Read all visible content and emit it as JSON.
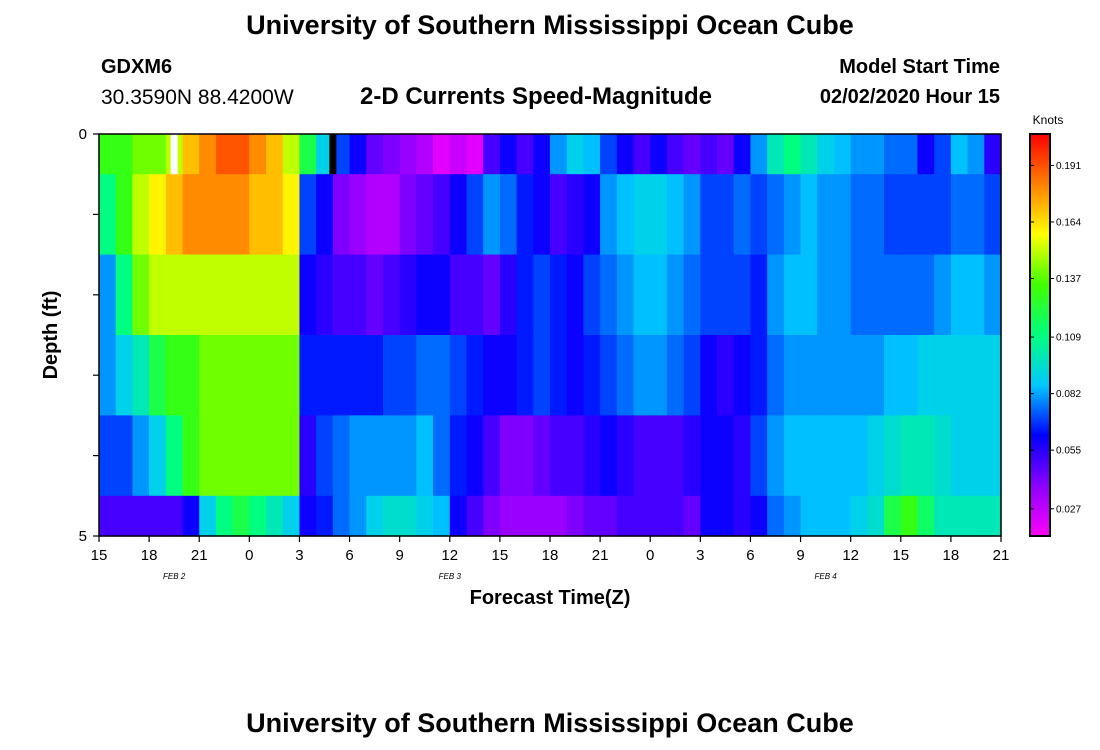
{
  "header": {
    "title": "University of Southern Mississippi Ocean Cube",
    "station_id": "GDXM6",
    "station_coords": "30.3590N 88.4200W",
    "chart_title": "2-D Currents Speed-Magnitude",
    "model_start_label": "Model Start Time",
    "model_start_value": "02/02/2020 Hour 15"
  },
  "footer": {
    "title": "University of Southern Mississippi Ocean Cube"
  },
  "chart_data": {
    "type": "heatmap",
    "title": "2-D Currents Speed-Magnitude",
    "xlabel": "Forecast Time(Z)",
    "ylabel": "Depth (ft)",
    "x_tick_labels": [
      "15",
      "18",
      "21",
      "0",
      "3",
      "6",
      "9",
      "12",
      "15",
      "18",
      "21",
      "0",
      "3",
      "6",
      "9",
      "12",
      "15",
      "18",
      "21"
    ],
    "x_tick_hours": [
      0,
      3,
      6,
      9,
      12,
      15,
      18,
      21,
      24,
      27,
      30,
      33,
      36,
      39,
      42,
      45,
      48,
      51,
      54
    ],
    "date_labels": [
      {
        "text": "FEB 2",
        "hour": 4.5
      },
      {
        "text": "FEB 3",
        "hour": 21
      },
      {
        "text": "FEB 4",
        "hour": 43.5
      }
    ],
    "xlim_hours": [
      0,
      54
    ],
    "y_tick_labels": [
      "0",
      "5"
    ],
    "ylim_ft": [
      0,
      5
    ],
    "depth_rows_ft": [
      [
        0,
        0.5
      ],
      [
        0.5,
        1.5
      ],
      [
        1.5,
        2.5
      ],
      [
        2.5,
        3.5
      ],
      [
        3.5,
        4.5
      ],
      [
        4.5,
        5.0
      ]
    ],
    "colorbar": {
      "label": "Knots",
      "min": 0.014,
      "max": 0.206,
      "tick_labels": [
        "0.191",
        "0.164",
        "0.137",
        "0.109",
        "0.082",
        "0.055",
        "0.027"
      ],
      "tick_values": [
        0.191,
        0.164,
        0.137,
        0.109,
        0.082,
        0.055,
        0.027
      ],
      "colors": [
        "#ff00ff",
        "#8c00ff",
        "#0000ff",
        "#00c8ff",
        "#00ff80",
        "#40ff00",
        "#ffff00",
        "#ff8000",
        "#ff0000"
      ]
    },
    "markers": [
      {
        "hour": 4.5,
        "color": "#ffffff"
      },
      {
        "hour": 14.0,
        "color": "#000000"
      }
    ],
    "values": [
      [
        0.13,
        0.13,
        0.14,
        0.14,
        0.15,
        0.17,
        0.18,
        0.19,
        0.19,
        0.18,
        0.17,
        0.15,
        0.12,
        0.09,
        0.07,
        0.06,
        0.045,
        0.04,
        0.035,
        0.03,
        0.02,
        0.025,
        0.02,
        0.05,
        0.06,
        0.05,
        0.06,
        0.08,
        0.09,
        0.085,
        0.07,
        0.06,
        0.05,
        0.06,
        0.05,
        0.045,
        0.05,
        0.045,
        0.06,
        0.08,
        0.1,
        0.11,
        0.1,
        0.09,
        0.085,
        0.08,
        0.08,
        0.075,
        0.075,
        0.06,
        0.07,
        0.085,
        0.08,
        0.055
      ],
      [
        0.11,
        0.13,
        0.15,
        0.16,
        0.17,
        0.18,
        0.18,
        0.18,
        0.18,
        0.17,
        0.17,
        0.16,
        0.07,
        0.06,
        0.04,
        0.035,
        0.03,
        0.03,
        0.04,
        0.045,
        0.05,
        0.06,
        0.07,
        0.08,
        0.075,
        0.065,
        0.06,
        0.05,
        0.055,
        0.06,
        0.08,
        0.085,
        0.09,
        0.09,
        0.085,
        0.08,
        0.07,
        0.07,
        0.075,
        0.07,
        0.075,
        0.08,
        0.085,
        0.08,
        0.08,
        0.075,
        0.075,
        0.07,
        0.07,
        0.07,
        0.07,
        0.075,
        0.075,
        0.07
      ],
      [
        0.08,
        0.11,
        0.14,
        0.15,
        0.15,
        0.15,
        0.15,
        0.15,
        0.15,
        0.15,
        0.15,
        0.15,
        0.06,
        0.055,
        0.05,
        0.05,
        0.045,
        0.05,
        0.055,
        0.06,
        0.06,
        0.05,
        0.05,
        0.045,
        0.055,
        0.065,
        0.07,
        0.065,
        0.06,
        0.07,
        0.075,
        0.08,
        0.085,
        0.085,
        0.08,
        0.075,
        0.07,
        0.07,
        0.07,
        0.065,
        0.08,
        0.085,
        0.085,
        0.08,
        0.08,
        0.075,
        0.075,
        0.075,
        0.075,
        0.075,
        0.08,
        0.085,
        0.085,
        0.08
      ],
      [
        0.08,
        0.09,
        0.1,
        0.12,
        0.13,
        0.13,
        0.14,
        0.14,
        0.14,
        0.14,
        0.14,
        0.14,
        0.065,
        0.065,
        0.065,
        0.065,
        0.065,
        0.07,
        0.07,
        0.075,
        0.075,
        0.07,
        0.065,
        0.06,
        0.06,
        0.065,
        0.07,
        0.065,
        0.06,
        0.065,
        0.07,
        0.075,
        0.08,
        0.08,
        0.075,
        0.07,
        0.06,
        0.055,
        0.06,
        0.065,
        0.075,
        0.08,
        0.08,
        0.08,
        0.08,
        0.08,
        0.08,
        0.085,
        0.085,
        0.09,
        0.09,
        0.09,
        0.09,
        0.09
      ],
      [
        0.07,
        0.07,
        0.08,
        0.09,
        0.11,
        0.13,
        0.14,
        0.14,
        0.14,
        0.14,
        0.14,
        0.14,
        0.055,
        0.07,
        0.075,
        0.08,
        0.08,
        0.08,
        0.08,
        0.085,
        0.075,
        0.065,
        0.06,
        0.05,
        0.04,
        0.04,
        0.045,
        0.05,
        0.05,
        0.055,
        0.06,
        0.055,
        0.05,
        0.05,
        0.05,
        0.055,
        0.06,
        0.06,
        0.055,
        0.07,
        0.08,
        0.085,
        0.085,
        0.085,
        0.085,
        0.085,
        0.09,
        0.095,
        0.1,
        0.1,
        0.095,
        0.09,
        0.09,
        0.09
      ],
      [
        0.05,
        0.05,
        0.05,
        0.05,
        0.05,
        0.06,
        0.09,
        0.11,
        0.12,
        0.11,
        0.1,
        0.09,
        0.06,
        0.065,
        0.075,
        0.08,
        0.09,
        0.095,
        0.095,
        0.09,
        0.085,
        0.06,
        0.05,
        0.04,
        0.035,
        0.035,
        0.035,
        0.035,
        0.04,
        0.045,
        0.045,
        0.05,
        0.05,
        0.05,
        0.05,
        0.045,
        0.06,
        0.06,
        0.055,
        0.06,
        0.075,
        0.08,
        0.085,
        0.085,
        0.085,
        0.09,
        0.095,
        0.12,
        0.13,
        0.115,
        0.1,
        0.1,
        0.1,
        0.1
      ]
    ]
  }
}
